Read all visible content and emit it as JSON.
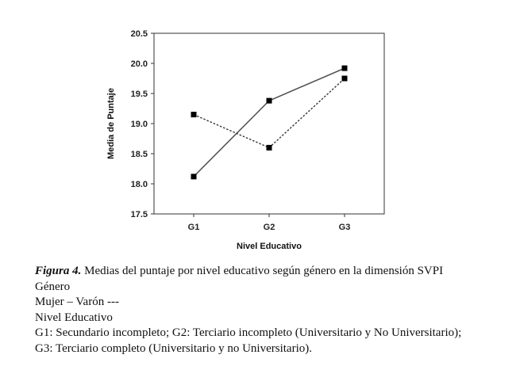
{
  "chart_data": {
    "type": "line",
    "categories": [
      "G1",
      "G2",
      "G3"
    ],
    "series": [
      {
        "values": [
          18.12,
          19.38,
          19.92
        ],
        "line_style": "solid",
        "color": "#555555"
      },
      {
        "values": [
          19.15,
          18.6,
          19.75
        ],
        "line_style": "dotted",
        "color": "#333333"
      }
    ],
    "ylim": [
      17.5,
      20.5
    ],
    "yticks": [
      "17.5",
      "18.0",
      "18.5",
      "19.0",
      "19.5",
      "20.0",
      "20.5"
    ],
    "ytick_values": [
      17.5,
      18.0,
      18.5,
      19.0,
      19.5,
      20.0,
      20.5
    ],
    "xlabel": "Nivel Educativo",
    "ylabel": "Media de Puntaje",
    "grid": false,
    "marker": "square"
  },
  "caption": {
    "figure_label": "Figura 4.",
    "title": " Medias del puntaje por nivel educativo según género en la dimensión SVPI",
    "line2": "Género",
    "line3": "Mujer –  Varón ---",
    "line4": "Nivel Educativo",
    "line5": "G1: Secundario incompleto; G2: Terciario incompleto (Universitario y No Universitario);",
    "line6": "G3: Terciario completo (Universitario y no Universitario)."
  }
}
